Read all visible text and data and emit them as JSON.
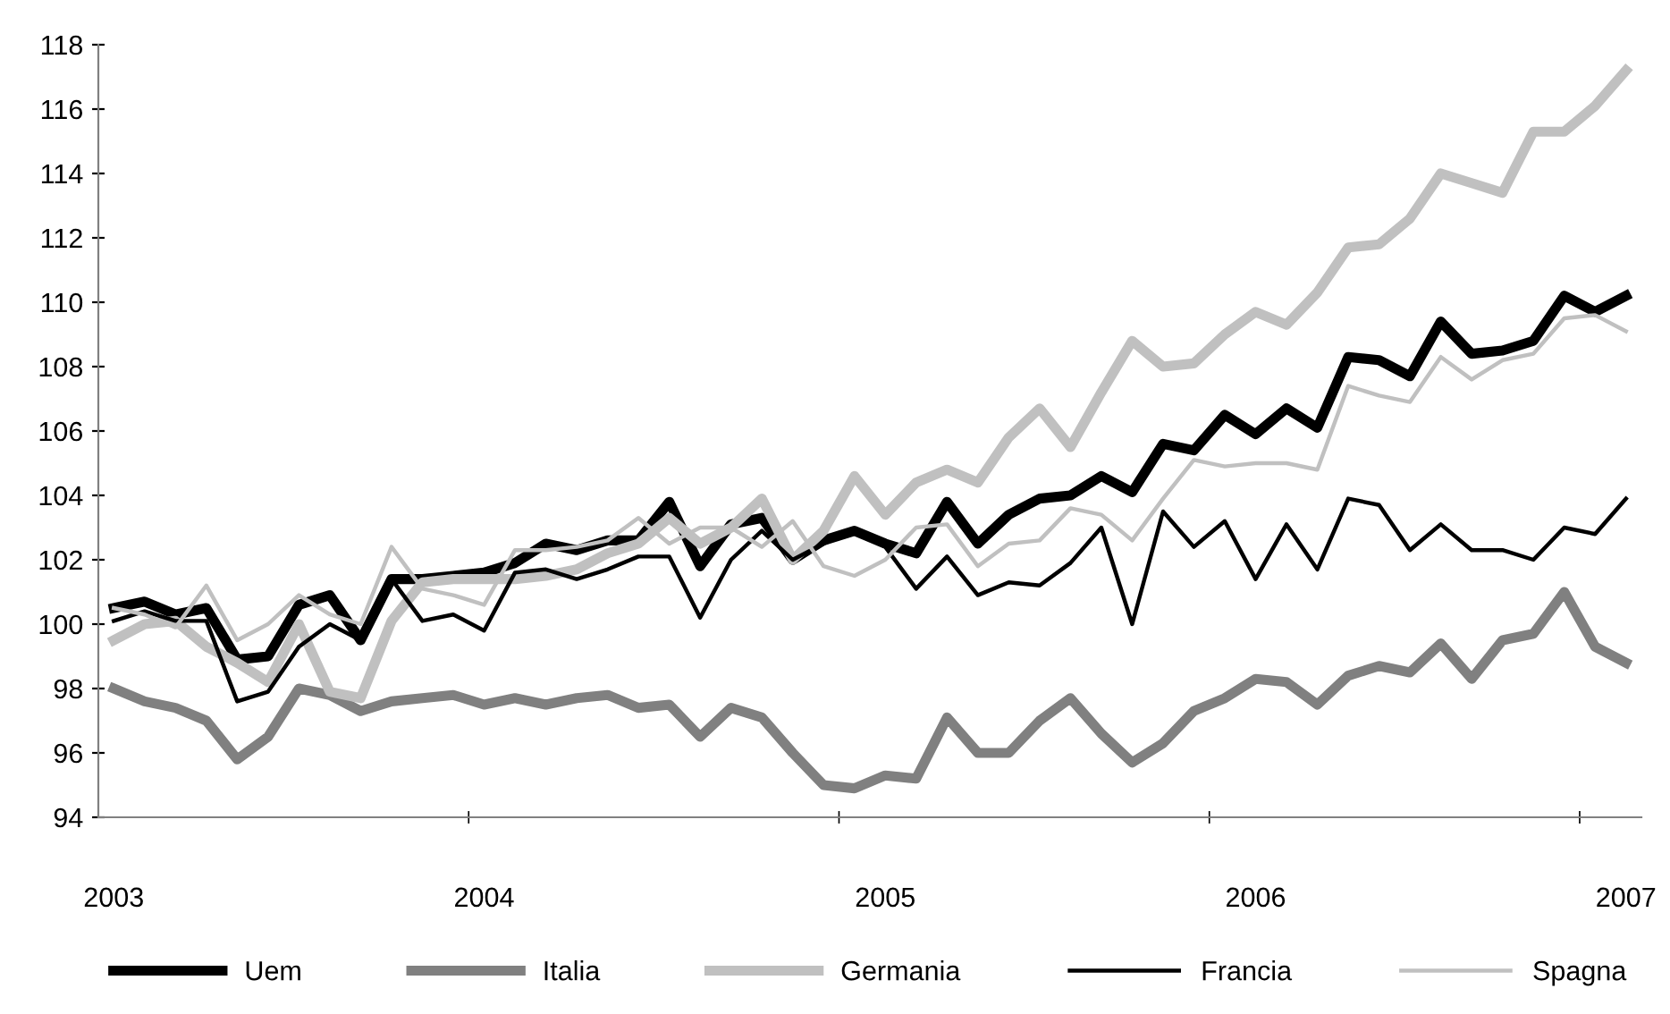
{
  "chart_data": {
    "type": "line",
    "categories": [
      "2003",
      null,
      null,
      null,
      null,
      null,
      null,
      null,
      null,
      null,
      null,
      null,
      "2004",
      null,
      null,
      null,
      null,
      null,
      null,
      null,
      null,
      null,
      null,
      null,
      null,
      "2005",
      null,
      null,
      null,
      null,
      null,
      null,
      null,
      null,
      null,
      null,
      null,
      "2006",
      null,
      null,
      null,
      null,
      null,
      null,
      null,
      null,
      null,
      null,
      null,
      "2007"
    ],
    "series": [
      {
        "name": "Uem",
        "color": "#000000",
        "values": [
          100.5,
          100.7,
          100.3,
          100.5,
          98.9,
          99.0,
          100.6,
          100.9,
          99.5,
          101.4,
          101.4,
          101.5,
          101.6,
          101.9,
          102.5,
          102.3,
          102.6,
          102.6,
          103.8,
          101.8,
          103.1,
          103.3,
          102.0,
          102.6,
          102.9,
          102.5,
          102.2,
          103.8,
          102.5,
          103.4,
          103.9,
          104.0,
          104.6,
          104.1,
          105.6,
          105.4,
          106.5,
          105.9,
          106.7,
          106.1,
          108.3,
          108.2,
          107.7,
          109.4,
          108.4,
          108.5,
          108.8,
          110.2,
          109.7,
          110.2
        ]
      },
      {
        "name": "Italia",
        "color": "#808080",
        "values": [
          98.0,
          97.6,
          97.4,
          97.0,
          95.8,
          96.5,
          98.0,
          97.8,
          97.3,
          97.6,
          97.7,
          97.8,
          97.5,
          97.7,
          97.5,
          97.7,
          97.8,
          97.4,
          97.5,
          96.5,
          97.4,
          97.1,
          96.0,
          95.0,
          94.9,
          95.3,
          95.2,
          97.1,
          96.0,
          96.0,
          97.0,
          97.7,
          96.6,
          95.7,
          96.3,
          97.3,
          97.7,
          98.3,
          98.2,
          97.5,
          98.4,
          98.7,
          98.5,
          99.4,
          98.3,
          99.5,
          99.7,
          101.0,
          99.3,
          98.8
        ]
      },
      {
        "name": "Germania",
        "color": "#c0c0c0",
        "values": [
          99.5,
          100.0,
          100.1,
          99.3,
          98.8,
          98.2,
          100.0,
          97.9,
          97.7,
          100.1,
          101.3,
          101.4,
          101.4,
          101.4,
          101.5,
          101.7,
          102.2,
          102.5,
          103.3,
          102.5,
          103.0,
          103.9,
          102.0,
          102.9,
          104.6,
          103.4,
          104.4,
          104.8,
          104.4,
          105.8,
          106.7,
          105.5,
          107.2,
          108.8,
          108.0,
          108.1,
          109.0,
          109.7,
          109.3,
          110.3,
          111.7,
          111.8,
          112.6,
          114.0,
          113.7,
          113.4,
          115.3,
          115.3,
          116.1,
          117.2
        ]
      },
      {
        "name": "Francia",
        "color": "#000000",
        "values": [
          100.1,
          100.4,
          100.1,
          100.1,
          97.6,
          97.9,
          99.3,
          100.0,
          99.5,
          101.4,
          100.1,
          100.3,
          99.8,
          101.6,
          101.7,
          101.4,
          101.7,
          102.1,
          102.1,
          100.2,
          102.0,
          102.9,
          102.0,
          102.5,
          102.9,
          102.4,
          101.1,
          102.1,
          100.9,
          101.3,
          101.2,
          101.9,
          103.0,
          100.0,
          103.5,
          102.4,
          103.2,
          101.4,
          103.1,
          101.7,
          103.9,
          103.7,
          102.3,
          103.1,
          102.3,
          102.3,
          102.0,
          103.0,
          102.8,
          103.9
        ]
      },
      {
        "name": "Spagna",
        "color": "#c0c0c0",
        "values": [
          100.5,
          100.3,
          99.9,
          101.2,
          99.5,
          100.0,
          100.9,
          100.3,
          100.0,
          102.4,
          101.1,
          100.9,
          100.6,
          102.3,
          102.3,
          102.4,
          102.6,
          103.3,
          102.5,
          103.0,
          103.0,
          102.4,
          103.2,
          101.8,
          101.5,
          102.0,
          103.0,
          103.1,
          101.8,
          102.5,
          102.6,
          103.6,
          103.4,
          102.6,
          103.9,
          105.1,
          104.9,
          105.0,
          105.0,
          104.8,
          107.4,
          107.1,
          106.9,
          108.3,
          107.6,
          108.2,
          108.4,
          109.5,
          109.6,
          109.1
        ]
      }
    ],
    "ylim": [
      94,
      118
    ],
    "yticks": [
      94,
      96,
      98,
      100,
      102,
      104,
      106,
      108,
      110,
      112,
      114,
      116,
      118
    ],
    "grid": false,
    "legend": "bottom",
    "marker": "none",
    "line_style": "solid"
  }
}
